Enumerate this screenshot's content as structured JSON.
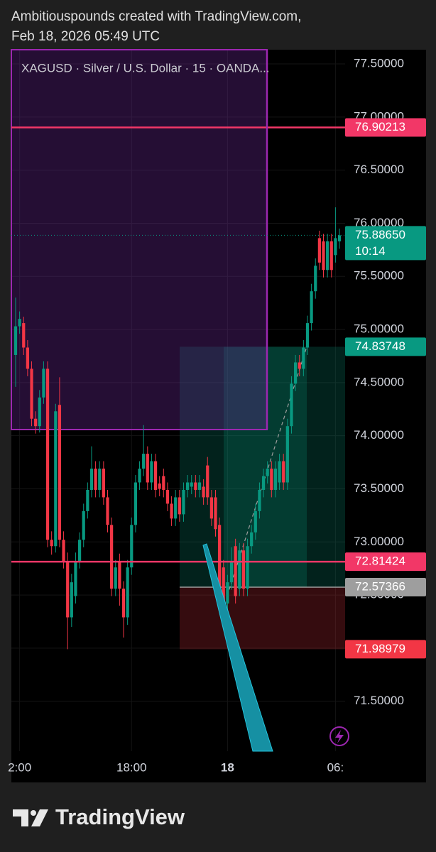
{
  "header": {
    "line1": "Ambitiouspounds created with TradingView.com,",
    "line2": "Feb 18, 2026 05:49 UTC"
  },
  "chart_data": {
    "type": "candlestick",
    "title": "XAGUSD · Silver / U.S. Dollar · 15 · OANDA...",
    "categories": [
      null,
      "2:00",
      null,
      null,
      null,
      null,
      null,
      null,
      null,
      null,
      null,
      null,
      null,
      null,
      null,
      null,
      null,
      null,
      null,
      null,
      null,
      null,
      null,
      null,
      null,
      null,
      null,
      null,
      null,
      "18:00",
      null,
      null,
      null,
      null,
      null,
      null,
      null,
      null,
      null,
      null,
      null,
      null,
      null,
      null,
      null,
      null,
      null,
      null,
      null,
      null,
      null,
      null,
      null,
      "18",
      null,
      null,
      null,
      null,
      null,
      null,
      null,
      null,
      null,
      null,
      null,
      null,
      null,
      null,
      null,
      null,
      null,
      null,
      null,
      null,
      null,
      null,
      null,
      null,
      null,
      null,
      "06:",
      null
    ],
    "open": [
      74.76,
      75.03,
      75.06,
      74.83,
      74.63,
      74.16,
      74.09,
      74.36,
      74.63,
      73.02,
      72.96,
      74.29,
      73.02,
      72.82,
      72.29,
      72.49,
      72.82,
      73.02,
      73.29,
      73.49,
      73.69,
      73.49,
      73.69,
      73.42,
      73.16,
      72.56,
      72.82,
      72.56,
      72.29,
      72.76,
      73.16,
      73.56,
      73.69,
      73.83,
      73.56,
      73.76,
      73.55,
      73.62,
      73.49,
      73.36,
      73.22,
      73.42,
      73.26,
      73.49,
      73.52,
      73.56,
      73.49,
      73.52,
      73.72,
      73.42,
      73.42,
      73.16,
      72.76,
      72.42,
      72.62,
      72.96,
      72.56,
      72.92,
      72.56,
      72.96,
      73.09,
      73.29,
      73.49,
      73.62,
      73.69,
      73.49,
      73.56,
      73.76,
      73.56,
      74.09,
      74.49,
      74.69,
      74.63,
      74.83,
      75.06,
      75.36,
      75.86,
      75.83,
      75.56,
      75.83,
      75.7,
      75.83
    ],
    "high": [
      75.3,
      75.17,
      75.12,
      74.9,
      74.7,
      74.23,
      74.43,
      74.7,
      74.7,
      73.1,
      74.3,
      74.55,
      73.1,
      72.9,
      72.7,
      72.9,
      73.09,
      73.36,
      73.56,
      73.9,
      73.76,
      73.76,
      73.76,
      73.49,
      73.23,
      72.83,
      72.89,
      72.63,
      72.83,
      73.23,
      73.63,
      73.76,
      74.1,
      73.9,
      73.83,
      73.83,
      73.62,
      73.69,
      73.56,
      73.43,
      73.49,
      73.49,
      73.56,
      73.63,
      73.63,
      73.63,
      73.63,
      73.59,
      73.8,
      73.49,
      73.49,
      73.23,
      72.83,
      72.69,
      72.95,
      73.03,
      72.99,
      72.99,
      73.03,
      73.16,
      73.36,
      73.56,
      73.69,
      73.76,
      73.76,
      73.76,
      73.83,
      73.83,
      74.16,
      74.56,
      74.76,
      74.76,
      74.9,
      75.13,
      75.43,
      75.67,
      75.93,
      75.9,
      75.9,
      75.9,
      76.15,
      75.95
    ],
    "low": [
      74.46,
      74.96,
      74.76,
      74.56,
      74.09,
      74.02,
      74.03,
      74.3,
      72.95,
      72.88,
      72.9,
      72.95,
      72.75,
      71.99,
      72.2,
      72.42,
      72.75,
      72.95,
      73.22,
      73.42,
      73.42,
      73.42,
      73.35,
      73.09,
      72.49,
      72.49,
      72.4,
      72.1,
      72.22,
      72.69,
      73.09,
      73.49,
      73.62,
      73.49,
      73.49,
      73.42,
      73.43,
      73.42,
      73.29,
      73.15,
      73.15,
      73.19,
      73.19,
      73.42,
      73.45,
      73.42,
      73.42,
      73.35,
      73.35,
      73.15,
      73.05,
      72.49,
      72.35,
      72.35,
      72.55,
      72.42,
      72.49,
      72.49,
      72.49,
      72.89,
      73.02,
      73.22,
      73.42,
      73.55,
      73.42,
      73.42,
      73.49,
      73.49,
      73.49,
      74.02,
      74.42,
      74.56,
      74.56,
      74.76,
      74.99,
      75.29,
      75.56,
      75.49,
      75.49,
      75.49,
      75.63,
      75.76
    ],
    "close": [
      75.03,
      75.1,
      74.83,
      74.63,
      74.16,
      74.09,
      74.36,
      74.63,
      73.02,
      72.96,
      74.23,
      73.02,
      72.82,
      72.29,
      72.62,
      72.82,
      73.02,
      73.29,
      73.49,
      73.69,
      73.49,
      73.69,
      73.42,
      73.16,
      72.56,
      72.76,
      72.56,
      72.29,
      72.76,
      73.16,
      73.56,
      73.69,
      73.83,
      73.56,
      73.76,
      73.49,
      73.5,
      73.49,
      73.36,
      73.22,
      73.42,
      73.26,
      73.49,
      73.56,
      73.56,
      73.49,
      73.56,
      73.42,
      73.42,
      73.22,
      73.12,
      72.56,
      72.42,
      72.62,
      72.82,
      72.49,
      72.92,
      72.56,
      72.96,
      73.09,
      73.29,
      73.49,
      73.62,
      73.69,
      73.49,
      73.69,
      73.76,
      73.56,
      74.09,
      74.49,
      74.69,
      74.63,
      74.83,
      75.06,
      75.36,
      75.6,
      75.63,
      75.56,
      75.83,
      75.56,
      75.86,
      75.8865
    ],
    "up_color": "#089981",
    "down_color": "#f23645",
    "ylim": [
      71.03,
      77.634
    ],
    "yticks": [
      {
        "value": 71.5,
        "label": "71.50000"
      },
      {
        "value": 72,
        "label": "72.00000"
      },
      {
        "value": 72.5,
        "label": "72.50000"
      },
      {
        "value": 73,
        "label": "73.00000"
      },
      {
        "value": 73.5,
        "label": "73.50000"
      },
      {
        "value": 74,
        "label": "74.00000"
      },
      {
        "value": 74.5,
        "label": "74.50000"
      },
      {
        "value": 75,
        "label": "75.00000"
      },
      {
        "value": 75.5,
        "label": "75.50000"
      },
      {
        "value": 76,
        "label": "76.00000"
      },
      {
        "value": 76.5,
        "label": "76.50000"
      },
      {
        "value": 77,
        "label": "77.00000"
      },
      {
        "value": 77.5,
        "label": "77.50000"
      }
    ],
    "grid": true,
    "last_price": {
      "value": 75.8865,
      "label": "75.88650"
    },
    "countdown": "10:14",
    "horizontal_lines": [
      76.90213,
      72.81424
    ],
    "line_color": "#f23767",
    "position": {
      "target": 74.83748,
      "entry": 72.57366,
      "stop": 71.98979
    }
  },
  "footer": {
    "brand": "TradingView"
  }
}
